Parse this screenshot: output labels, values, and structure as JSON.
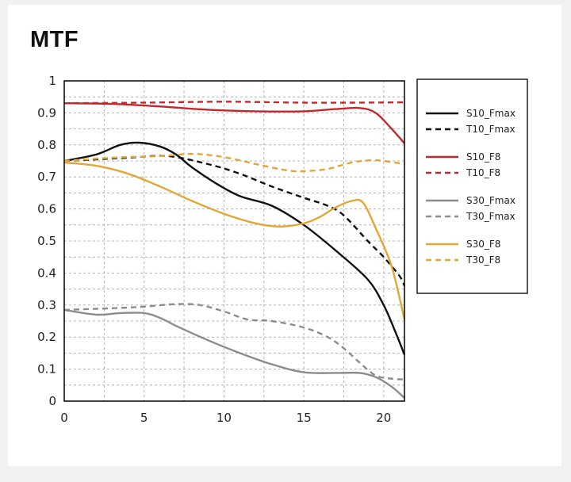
{
  "chart_data": {
    "type": "line",
    "title": "MTF",
    "xlabel": "",
    "ylabel": "",
    "xlim": [
      0,
      21.3
    ],
    "ylim": [
      0,
      1
    ],
    "x_ticks": [
      "0",
      "5",
      "10",
      "15",
      "20"
    ],
    "y_ticks": [
      "0",
      "0.1",
      "0.2",
      "0.3",
      "0.4",
      "0.5",
      "0.6",
      "0.7",
      "0.8",
      "0.9",
      "1"
    ],
    "grid": true,
    "legend_position": "right",
    "series": [
      {
        "name": "S10_Fmax",
        "color": "#111111",
        "dash": "solid",
        "points": [
          [
            0,
            0.75
          ],
          [
            2,
            0.77
          ],
          [
            3.5,
            0.8
          ],
          [
            4.7,
            0.807
          ],
          [
            6,
            0.795
          ],
          [
            7,
            0.77
          ],
          [
            8,
            0.73
          ],
          [
            9.5,
            0.68
          ],
          [
            11,
            0.64
          ],
          [
            13,
            0.61
          ],
          [
            15,
            0.55
          ],
          [
            17,
            0.47
          ],
          [
            19,
            0.38
          ],
          [
            20,
            0.3
          ],
          [
            20.7,
            0.22
          ],
          [
            21.3,
            0.145
          ]
        ]
      },
      {
        "name": "T10_Fmax",
        "color": "#111111",
        "dash": "dashed",
        "points": [
          [
            0,
            0.75
          ],
          [
            2,
            0.755
          ],
          [
            4,
            0.76
          ],
          [
            6.5,
            0.765
          ],
          [
            9,
            0.74
          ],
          [
            11,
            0.71
          ],
          [
            13,
            0.67
          ],
          [
            15,
            0.635
          ],
          [
            16.5,
            0.61
          ],
          [
            17.5,
            0.58
          ],
          [
            19,
            0.5
          ],
          [
            20,
            0.45
          ],
          [
            21,
            0.39
          ],
          [
            21.3,
            0.36
          ]
        ]
      },
      {
        "name": "S10_F8",
        "color": "#c0282d",
        "dash": "solid",
        "points": [
          [
            0,
            0.93
          ],
          [
            3,
            0.928
          ],
          [
            6,
            0.92
          ],
          [
            9,
            0.91
          ],
          [
            12,
            0.905
          ],
          [
            15,
            0.905
          ],
          [
            17,
            0.912
          ],
          [
            18.5,
            0.915
          ],
          [
            19.5,
            0.9
          ],
          [
            20.5,
            0.85
          ],
          [
            21.3,
            0.805
          ]
        ]
      },
      {
        "name": "T10_F8",
        "color": "#c0282d",
        "dash": "dashed",
        "points": [
          [
            0,
            0.93
          ],
          [
            5,
            0.932
          ],
          [
            10,
            0.935
          ],
          [
            15,
            0.932
          ],
          [
            18,
            0.932
          ],
          [
            21.3,
            0.933
          ]
        ]
      },
      {
        "name": "S30_Fmax",
        "color": "#8c8c8c",
        "dash": "solid",
        "points": [
          [
            0,
            0.285
          ],
          [
            2,
            0.27
          ],
          [
            3.5,
            0.275
          ],
          [
            5,
            0.275
          ],
          [
            6,
            0.26
          ],
          [
            7,
            0.235
          ],
          [
            9,
            0.19
          ],
          [
            11,
            0.15
          ],
          [
            13,
            0.115
          ],
          [
            15,
            0.09
          ],
          [
            17,
            0.088
          ],
          [
            18.5,
            0.088
          ],
          [
            19.5,
            0.075
          ],
          [
            20.5,
            0.045
          ],
          [
            21.3,
            0.01
          ]
        ]
      },
      {
        "name": "T30_Fmax",
        "color": "#8c8c8c",
        "dash": "dashed",
        "points": [
          [
            0,
            0.285
          ],
          [
            3,
            0.29
          ],
          [
            5,
            0.295
          ],
          [
            7,
            0.303
          ],
          [
            8.5,
            0.3
          ],
          [
            10,
            0.28
          ],
          [
            11.5,
            0.255
          ],
          [
            13,
            0.25
          ],
          [
            15,
            0.23
          ],
          [
            16.5,
            0.2
          ],
          [
            17.5,
            0.165
          ],
          [
            18.5,
            0.12
          ],
          [
            19.5,
            0.08
          ],
          [
            20.5,
            0.07
          ],
          [
            21.3,
            0.068
          ]
        ]
      },
      {
        "name": "S30_F8",
        "color": "#e3a635",
        "dash": "solid",
        "points": [
          [
            0,
            0.745
          ],
          [
            2,
            0.735
          ],
          [
            4,
            0.71
          ],
          [
            6,
            0.67
          ],
          [
            8,
            0.625
          ],
          [
            10,
            0.585
          ],
          [
            12,
            0.555
          ],
          [
            13.5,
            0.545
          ],
          [
            15,
            0.555
          ],
          [
            16,
            0.575
          ],
          [
            17,
            0.605
          ],
          [
            18,
            0.625
          ],
          [
            18.7,
            0.62
          ],
          [
            19.5,
            0.54
          ],
          [
            20.5,
            0.42
          ],
          [
            21.3,
            0.255
          ]
        ]
      },
      {
        "name": "T30_F8",
        "color": "#e3a635",
        "dash": "dashed",
        "points": [
          [
            0,
            0.75
          ],
          [
            3,
            0.76
          ],
          [
            6,
            0.765
          ],
          [
            8,
            0.772
          ],
          [
            10,
            0.762
          ],
          [
            12,
            0.74
          ],
          [
            14,
            0.72
          ],
          [
            15,
            0.718
          ],
          [
            16.5,
            0.725
          ],
          [
            18,
            0.745
          ],
          [
            19.5,
            0.752
          ],
          [
            21.3,
            0.74
          ]
        ]
      }
    ]
  }
}
